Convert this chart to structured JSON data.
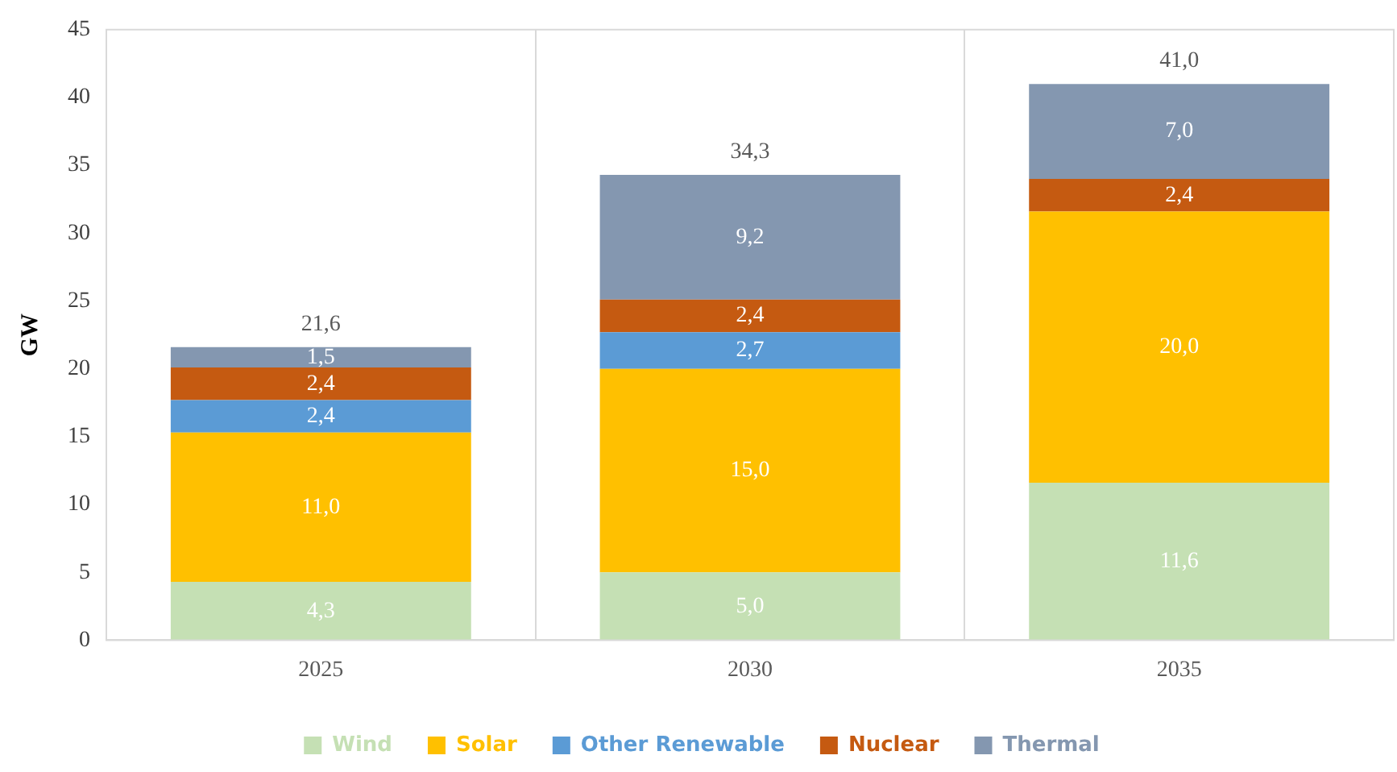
{
  "chart_data": {
    "type": "bar",
    "stacked": true,
    "ylabel": "GW",
    "categories": [
      "2025",
      "2030",
      "2035"
    ],
    "series": [
      {
        "name": "Wind",
        "color": "#c5e0b4",
        "values": [
          4.3,
          5.0,
          11.6
        ],
        "value_labels": [
          "4,3",
          "5,0",
          "11,6"
        ]
      },
      {
        "name": "Solar",
        "color": "#ffc000",
        "values": [
          11.0,
          15.0,
          20.0
        ],
        "value_labels": [
          "11,0",
          "15,0",
          "20,0"
        ]
      },
      {
        "name": "Other Renewable",
        "color": "#5b9bd5",
        "values": [
          2.4,
          2.7,
          0
        ],
        "value_labels": [
          "2,4",
          "2,7",
          null
        ]
      },
      {
        "name": "Nuclear",
        "color": "#c55a11",
        "values": [
          2.4,
          2.4,
          2.4
        ],
        "value_labels": [
          "2,4",
          "2,4",
          "2,4"
        ]
      },
      {
        "name": "Thermal",
        "color": "#8497b0",
        "values": [
          1.5,
          9.2,
          7.0
        ],
        "value_labels": [
          "1,5",
          "9,2",
          "7,0"
        ]
      }
    ],
    "totals": [
      "21,6",
      "34,3",
      "41,0"
    ],
    "ylim": [
      0,
      45
    ],
    "yticks": [
      0,
      5,
      10,
      15,
      20,
      25,
      30,
      35,
      40,
      45
    ],
    "grid": "x",
    "legend": "bottom"
  }
}
